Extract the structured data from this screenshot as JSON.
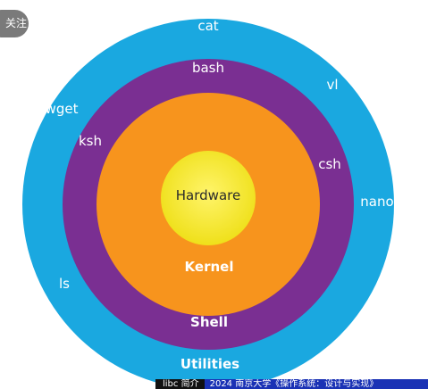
{
  "follow_button": {
    "label": "关注"
  },
  "layers": {
    "utilities": {
      "name": "Utilities",
      "color": "#1aa8e0",
      "programs": {
        "cat": "cat",
        "vi": "vl",
        "wget": "wget",
        "nano": "nano",
        "ls": "ls"
      }
    },
    "shell": {
      "name": "Shell",
      "color": "#7a2f92",
      "programs": {
        "bash": "bash",
        "ksh": "ksh",
        "csh": "csh"
      }
    },
    "kernel": {
      "name": "Kernel",
      "color": "#f7941d"
    },
    "hardware": {
      "name": "Hardware",
      "color": "#f4e71c"
    }
  },
  "caption_bar": {
    "section": "libc 简介",
    "course": "2024 南京大学《操作系统：设计与实现》"
  }
}
